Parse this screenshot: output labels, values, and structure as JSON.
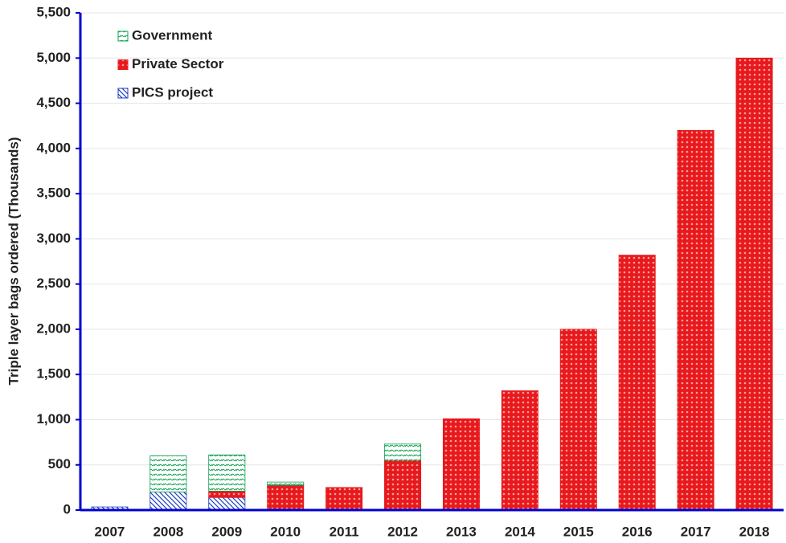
{
  "chart_data": {
    "type": "stacked_bar",
    "y_label": "Triple layer bags ordered (Thousands)",
    "categories": [
      "2007",
      "2008",
      "2009",
      "2010",
      "2011",
      "2012",
      "2013",
      "2014",
      "2015",
      "2016",
      "2017",
      "2018"
    ],
    "series": [
      {
        "name": "PICS project",
        "color": "#1f3fbf",
        "values": [
          35,
          200,
          140,
          0,
          0,
          0,
          0,
          0,
          0,
          0,
          0,
          0
        ]
      },
      {
        "name": "Private Sector",
        "color": "#e8191c",
        "values": [
          0,
          0,
          70,
          275,
          250,
          550,
          1010,
          1320,
          2000,
          2820,
          4200,
          5000
        ]
      },
      {
        "name": "Government",
        "color": "#10a050",
        "values": [
          0,
          400,
          400,
          35,
          0,
          180,
          0,
          0,
          0,
          0,
          0,
          0
        ]
      }
    ],
    "ylim": [
      0,
      5500
    ],
    "yticks": [
      0,
      500,
      {
        "value": 1000,
        "label": "1,000"
      },
      {
        "value": 1500,
        "label": "1,500"
      },
      {
        "value": 2000,
        "label": "2,000"
      },
      {
        "value": 2500,
        "label": "2,500"
      },
      {
        "value": 3000,
        "label": "3,000"
      },
      {
        "value": 3500,
        "label": "3,500"
      },
      {
        "value": 4000,
        "label": "4,000"
      },
      {
        "value": 4500,
        "label": "4,500"
      },
      {
        "value": 5000,
        "label": "5,000"
      },
      {
        "value": 5500,
        "label": "5,500"
      }
    ],
    "grid": true,
    "legend": "top-left",
    "axis_color": "#0000cc"
  }
}
